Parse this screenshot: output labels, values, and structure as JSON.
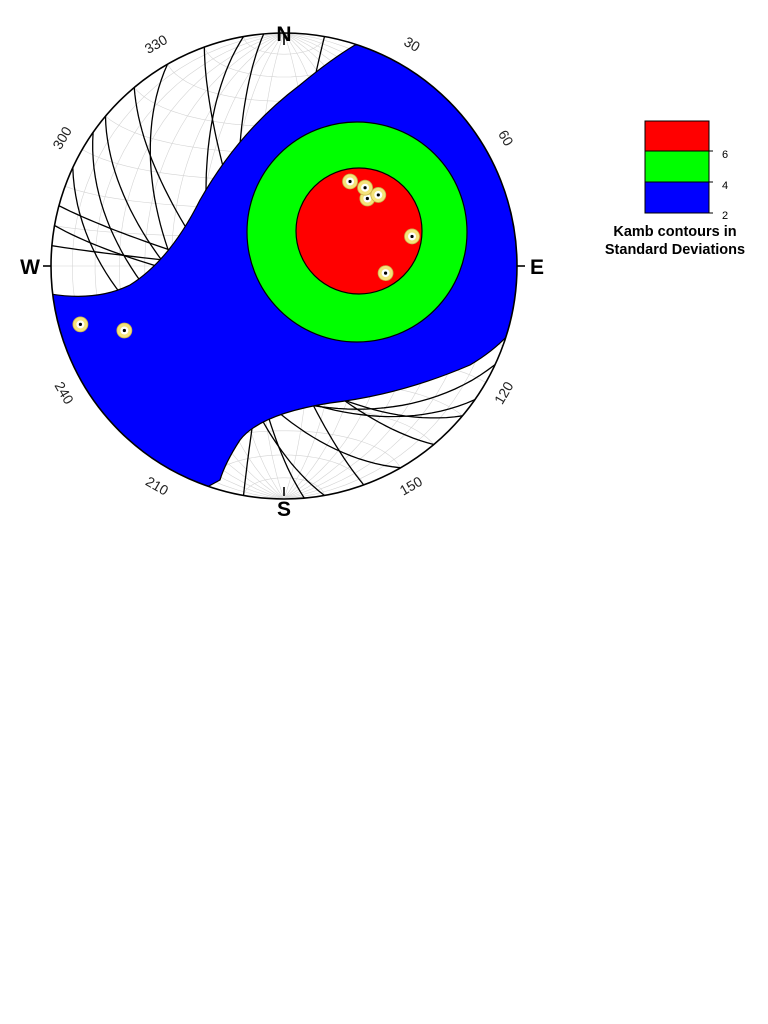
{
  "chart_data": {
    "type": "stereonet",
    "projection": "equal-area lower hemisphere",
    "compass_labels": {
      "north": "N",
      "east": "E",
      "south": "S",
      "west": "W"
    },
    "azimuth_ticks": [
      {
        "azimuth": 30,
        "label": "30"
      },
      {
        "azimuth": 60,
        "label": "60"
      },
      {
        "azimuth": 120,
        "label": "120"
      },
      {
        "azimuth": 150,
        "label": "150"
      },
      {
        "azimuth": 210,
        "label": "210"
      },
      {
        "azimuth": 240,
        "label": "240"
      },
      {
        "azimuth": 300,
        "label": "300"
      },
      {
        "azimuth": 330,
        "label": "330"
      }
    ],
    "contours": [
      {
        "level": 2,
        "color": "#0000ff"
      },
      {
        "level": 4,
        "color": "#00ff00"
      },
      {
        "level": 6,
        "color": "#ff0000"
      }
    ],
    "poles": [
      {
        "trend": 51,
        "plunge": 52
      },
      {
        "trend": 38,
        "plunge": 52
      },
      {
        "trend": 46,
        "plunge": 50
      },
      {
        "trend": 53,
        "plunge": 48
      },
      {
        "trend": 94,
        "plunge": 54
      },
      {
        "trend": 77,
        "plunge": 43
      },
      {
        "trend": 254,
        "plunge": 10
      },
      {
        "trend": 248,
        "plunge": 27
      }
    ],
    "grid": true,
    "legend": {
      "placement": "right",
      "ticks": [
        "2",
        "4",
        "6"
      ],
      "title_lines": [
        "Kamb contours in",
        "Standard Deviations"
      ]
    }
  },
  "colors": {
    "contour_2": "#0000ff",
    "contour_4": "#00ff00",
    "contour_6": "#ff0000",
    "pole_ring": "#f5e37a",
    "great_circle": "#000000",
    "grid": "#d4d4d4"
  }
}
